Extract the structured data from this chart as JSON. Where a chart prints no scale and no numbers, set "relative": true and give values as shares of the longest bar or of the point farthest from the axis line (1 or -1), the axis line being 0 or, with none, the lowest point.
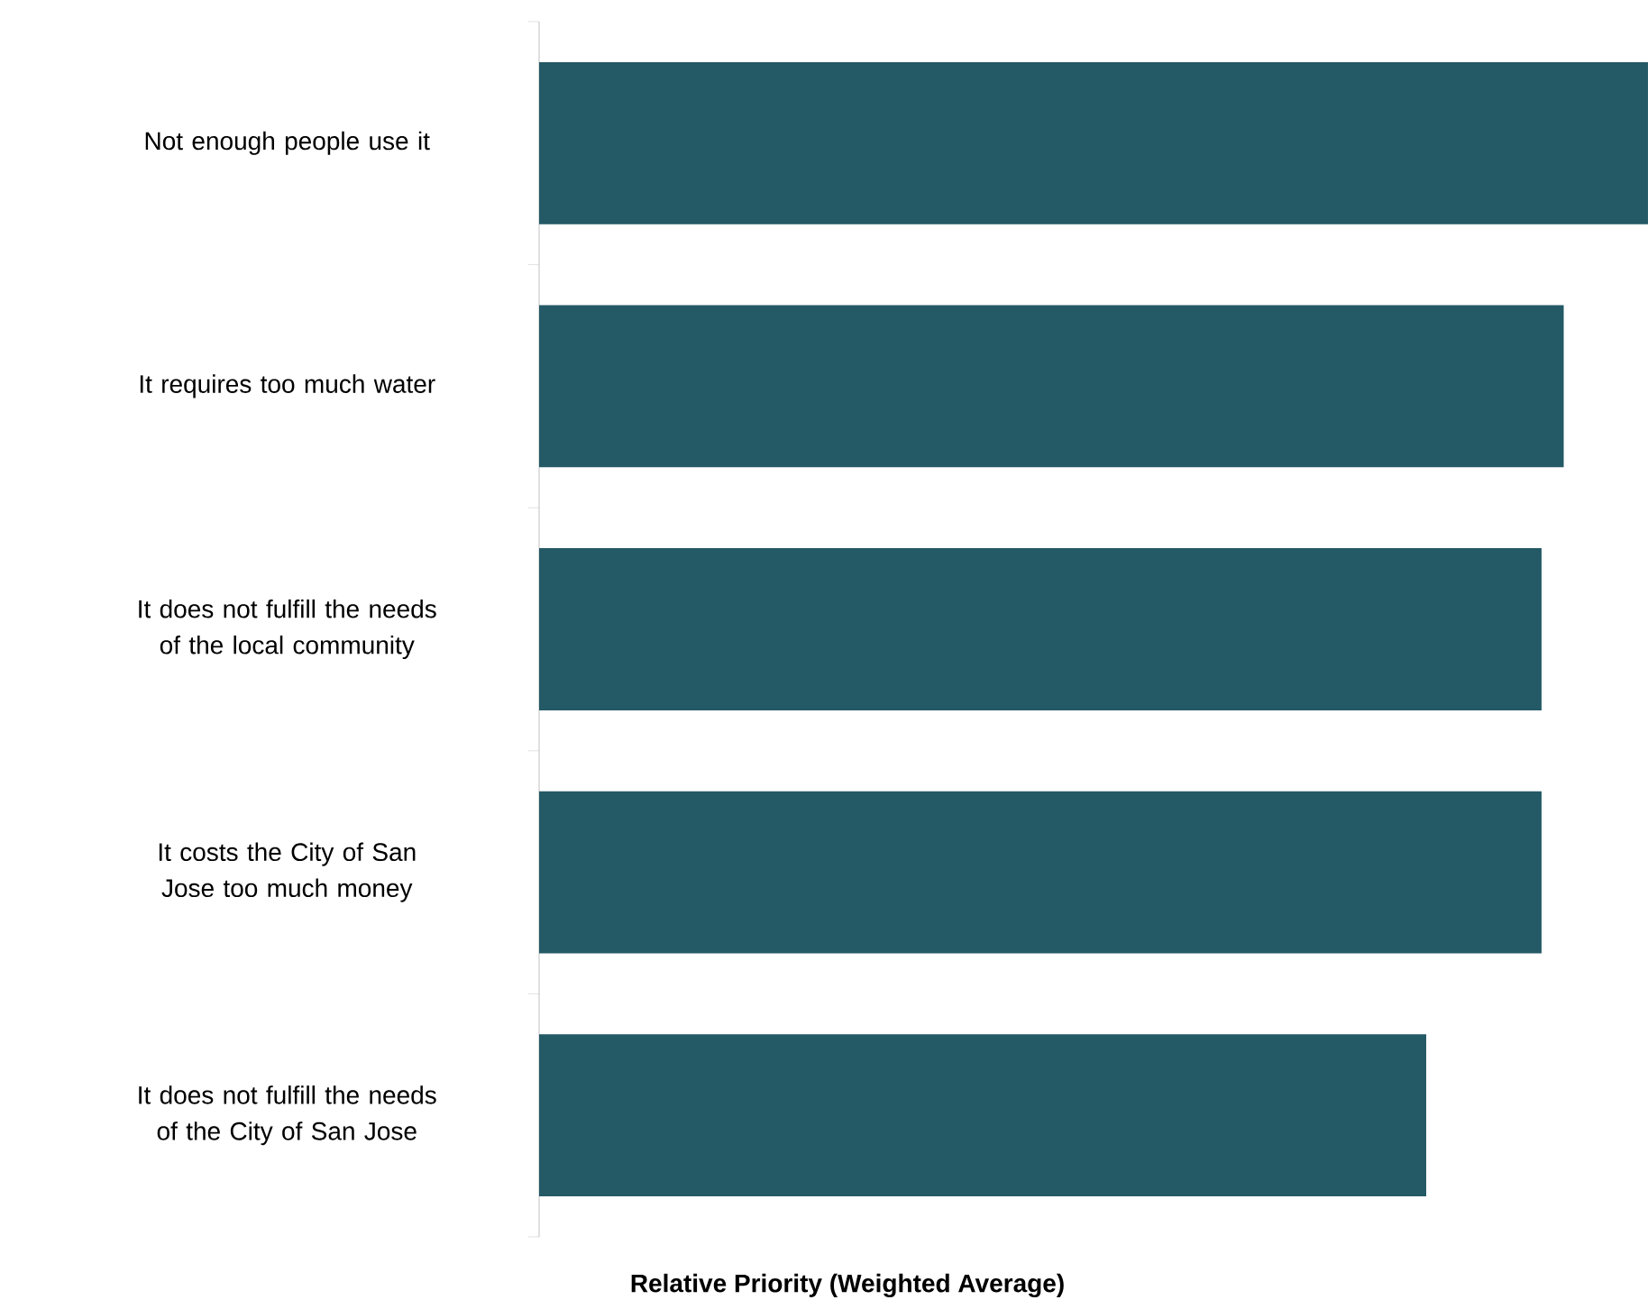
{
  "chart_data": {
    "type": "bar",
    "orientation": "horizontal",
    "relative": true,
    "xlabel": "Relative Priority (Weighted Average)",
    "categories": [
      "Not enough people use it",
      "It requires too much water",
      "It does not fulfill the needs of the local community",
      "It costs the City of San Jose too much money",
      "It does not fulfill the needs of the City of San Jose"
    ],
    "values": [
      1,
      0.924,
      0.904,
      0.904,
      0.8
    ],
    "color": "#245966"
  }
}
